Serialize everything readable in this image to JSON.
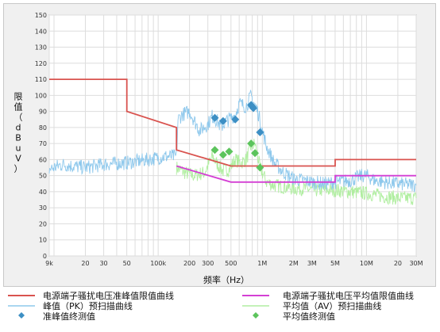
{
  "chart_data": {
    "type": "line",
    "xlabel": "频率（Hz）",
    "ylabel": "限值（dBuV）",
    "x_scale": "log",
    "xlim": [
      9000,
      30000000
    ],
    "ylim": [
      0,
      150
    ],
    "y_ticks": [
      0,
      10,
      20,
      30,
      40,
      50,
      60,
      70,
      80,
      90,
      100,
      110,
      120,
      130,
      140,
      150
    ],
    "x_major_ticks": [
      {
        "value": 9000,
        "label": "9k"
      },
      {
        "value": 20000,
        "label": "20"
      },
      {
        "value": 30000,
        "label": "30"
      },
      {
        "value": 50000,
        "label": "50"
      },
      {
        "value": 100000,
        "label": "100k"
      },
      {
        "value": 200000,
        "label": "200"
      },
      {
        "value": 300000,
        "label": "300"
      },
      {
        "value": 500000,
        "label": "500"
      },
      {
        "value": 1000000,
        "label": "1M"
      },
      {
        "value": 2000000,
        "label": "2M"
      },
      {
        "value": 3000000,
        "label": "3M"
      },
      {
        "value": 5000000,
        "label": "5M"
      },
      {
        "value": 10000000,
        "label": "10M"
      },
      {
        "value": 20000000,
        "label": "20"
      },
      {
        "value": 30000000,
        "label": "30M"
      }
    ],
    "grid": true,
    "legend_position": "bottom",
    "series": [
      {
        "name": "电源端子骚扰电压准峰值限值曲线",
        "color": "#d9534f",
        "kind": "line",
        "x": [
          9000,
          50000,
          50000,
          150000,
          150000,
          500000,
          500000,
          5000000,
          5000000,
          30000000
        ],
        "y": [
          110,
          110,
          90,
          80,
          66,
          56,
          56,
          56,
          60,
          60
        ]
      },
      {
        "name": "峰值（PK）预扫描曲线",
        "color": "#8ec8ec",
        "kind": "noise",
        "x": [
          9000,
          12000,
          15000,
          20000,
          30000,
          50000,
          80000,
          120000,
          150000,
          155000,
          170000,
          200000,
          250000,
          300000,
          330000,
          370000,
          400000,
          450000,
          500000,
          550000,
          600000,
          700000,
          780000,
          820000,
          880000,
          950000,
          1000000,
          1100000,
          1300000,
          1600000,
          2000000,
          2500000,
          3000000,
          4000000,
          5000000,
          7000000,
          9000000,
          10000000,
          12000000,
          15000000,
          20000000,
          30000000
        ],
        "y": [
          54,
          57,
          56,
          55,
          57,
          58,
          60,
          62,
          62,
          85,
          88,
          90,
          78,
          82,
          87,
          84,
          80,
          84,
          86,
          88,
          95,
          93,
          100,
          96,
          92,
          85,
          78,
          68,
          58,
          52,
          48,
          47,
          46,
          45,
          46,
          47,
          50,
          50,
          47,
          46,
          45,
          44
        ]
      },
      {
        "name": "准峰值终测值",
        "color": "#3d8fc4",
        "kind": "diamond",
        "x": [
          350000,
          420000,
          550000,
          780000,
          800000,
          820000,
          950000
        ],
        "y": [
          86,
          84,
          85,
          94,
          93,
          92,
          77
        ]
      },
      {
        "name": "电源端子骚扰电压平均值限值曲线",
        "color": "#d43fd4",
        "kind": "line",
        "x": [
          150000,
          500000,
          500000,
          5000000,
          5000000,
          30000000
        ],
        "y": [
          56,
          46,
          46,
          46,
          50,
          50
        ]
      },
      {
        "name": "平均值（AV）预扫描曲线",
        "color": "#b0eea0",
        "kind": "noise",
        "x": [
          150000,
          180000,
          220000,
          280000,
          330000,
          380000,
          420000,
          480000,
          550000,
          620000,
          700000,
          780000,
          850000,
          950000,
          1100000,
          1300000,
          1600000,
          2000000,
          2500000,
          3000000,
          4000000,
          5000000,
          7000000,
          10000000,
          15000000,
          20000000,
          30000000
        ],
        "y": [
          55,
          52,
          50,
          52,
          62,
          56,
          53,
          54,
          60,
          58,
          60,
          68,
          70,
          55,
          46,
          44,
          43,
          42,
          42,
          41,
          41,
          41,
          40,
          39,
          37,
          36,
          36
        ]
      },
      {
        "name": "平均值终测值",
        "color": "#5cc45c",
        "kind": "diamond",
        "x": [
          350000,
          420000,
          480000,
          780000,
          850000,
          950000
        ],
        "y": [
          66,
          63,
          65,
          70,
          64,
          55
        ]
      }
    ]
  }
}
